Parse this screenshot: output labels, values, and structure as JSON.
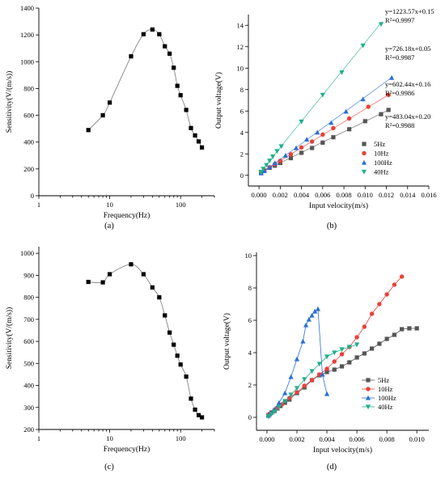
{
  "chart_data": [
    {
      "panel": "(a)",
      "type": "line",
      "xscale": "log",
      "xlabel": "Frequency(Hz)",
      "ylabel": "Sensitivity(V/(m/s))",
      "xlim": [
        1,
        300
      ],
      "ylim": [
        0,
        1400
      ],
      "xticks": [
        1,
        10,
        100
      ],
      "xtick_labels": [
        "1",
        "10",
        "100"
      ],
      "yticks": [
        0,
        200,
        400,
        600,
        800,
        1000,
        1200,
        1400
      ],
      "ytick_labels": [
        "0",
        "200",
        "400",
        "600",
        "800",
        "1000",
        "1200",
        "1400"
      ],
      "marker": "square",
      "series": [
        {
          "x": [
            5,
            8,
            10,
            20,
            30,
            40,
            50,
            60,
            70,
            80,
            90,
            100,
            120,
            140,
            160,
            180,
            200
          ],
          "y": [
            490,
            600,
            695,
            1040,
            1205,
            1240,
            1205,
            1115,
            1060,
            955,
            820,
            750,
            640,
            505,
            450,
            405,
            360
          ]
        }
      ]
    },
    {
      "panel": "(b)",
      "type": "scatter",
      "xlabel": "Input velocity(m/s)",
      "ylabel": "Output voltage(V)",
      "xlim": [
        -0.001,
        0.016
      ],
      "ylim": [
        -1,
        15
      ],
      "xticks": [
        0,
        0.002,
        0.004,
        0.006,
        0.008,
        0.01,
        0.012,
        0.014,
        0.016
      ],
      "xtick_labels": [
        "0.000",
        "0.002",
        "0.004",
        "0.006",
        "0.008",
        "0.010",
        "0.012",
        "0.014",
        "0.016"
      ],
      "yticks": [
        0,
        2,
        4,
        6,
        8,
        10,
        12,
        14
      ],
      "ytick_labels": [
        "0",
        "2",
        "4",
        "6",
        "8",
        "10",
        "12",
        "14"
      ],
      "legend": "bottom-right",
      "annotations": [
        {
          "eq": "y=1223.57x+0.15",
          "r2": "R²=0.9997",
          "series": "40Hz"
        },
        {
          "eq": "y=726.18x+0.05",
          "r2": "R²=0.9987",
          "series": "100Hz"
        },
        {
          "eq": "y=602.44x+0.16",
          "r2": "R²=0.9986",
          "series": "10Hz"
        },
        {
          "eq": "y=483.04x+0.20",
          "r2": "R²=0.9988",
          "series": "5Hz"
        }
      ],
      "series": [
        {
          "name": "5Hz",
          "color": "#555555",
          "marker": "square",
          "slope": 483.04,
          "intercept": 0.2,
          "x": [
            0.0002,
            0.0005,
            0.001,
            0.0015,
            0.002,
            0.003,
            0.004,
            0.005,
            0.006,
            0.007,
            0.0085,
            0.01,
            0.0115,
            0.0122
          ],
          "y": [
            0.3,
            0.45,
            0.7,
            0.9,
            1.15,
            1.6,
            2.1,
            2.55,
            3.05,
            3.55,
            4.3,
            5.05,
            5.7,
            6.1
          ]
        },
        {
          "name": "10Hz",
          "color": "#e8413c",
          "marker": "circle",
          "slope": 602.44,
          "intercept": 0.16,
          "x": [
            0.0002,
            0.0005,
            0.001,
            0.0015,
            0.002,
            0.003,
            0.004,
            0.005,
            0.006,
            0.007,
            0.0085,
            0.0103,
            0.0122
          ],
          "y": [
            0.3,
            0.45,
            0.75,
            1.05,
            1.35,
            1.95,
            2.6,
            3.15,
            3.8,
            4.4,
            5.3,
            6.4,
            7.5
          ]
        },
        {
          "name": "100Hz",
          "color": "#2a6fd6",
          "marker": "triangle-up",
          "slope": 726.18,
          "intercept": 0.05,
          "x": [
            0.0002,
            0.0005,
            0.001,
            0.0015,
            0.0025,
            0.0035,
            0.0045,
            0.0055,
            0.0068,
            0.0082,
            0.0098,
            0.0125
          ],
          "y": [
            0.2,
            0.4,
            0.75,
            1.15,
            1.85,
            2.55,
            3.35,
            4.0,
            4.9,
            5.95,
            7.1,
            9.1
          ]
        },
        {
          "name": "40Hz",
          "color": "#1fb08c",
          "marker": "triangle-down",
          "slope": 1223.57,
          "intercept": 0.15,
          "x": [
            0.0002,
            0.0004,
            0.0007,
            0.001,
            0.0013,
            0.0017,
            0.0021,
            0.004,
            0.006,
            0.0078,
            0.0098,
            0.0115
          ],
          "y": [
            0.3,
            0.6,
            0.95,
            1.35,
            1.75,
            2.25,
            2.7,
            5.0,
            7.5,
            9.6,
            12.1,
            14.1
          ]
        }
      ]
    },
    {
      "panel": "(c)",
      "type": "line",
      "xscale": "log",
      "xlabel": "Frequency(Hz)",
      "ylabel": "Sensitivity(V/(m/s))",
      "xlim": [
        1,
        300
      ],
      "ylim": [
        200,
        1030
      ],
      "xticks": [
        1,
        10,
        100
      ],
      "xtick_labels": [
        "1",
        "10",
        "100"
      ],
      "yticks": [
        200,
        300,
        400,
        500,
        600,
        700,
        800,
        900,
        1000
      ],
      "ytick_labels": [
        "200",
        "300",
        "400",
        "500",
        "600",
        "700",
        "800",
        "900",
        "1000"
      ],
      "marker": "square",
      "series": [
        {
          "x": [
            5,
            8,
            10,
            20,
            30,
            40,
            50,
            60,
            70,
            80,
            90,
            100,
            120,
            140,
            160,
            180,
            200
          ],
          "y": [
            870,
            868,
            905,
            950,
            905,
            845,
            800,
            718,
            640,
            585,
            535,
            495,
            440,
            340,
            290,
            265,
            255
          ]
        }
      ]
    },
    {
      "panel": "(d)",
      "type": "line",
      "xlabel": "Input velocity(m/s)",
      "ylabel": "Output voltage(V)",
      "xlim": [
        -0.0007,
        0.0108
      ],
      "ylim": [
        -0.8,
        10.2
      ],
      "xticks": [
        0,
        0.002,
        0.004,
        0.006,
        0.008,
        0.01
      ],
      "xtick_labels": [
        "0.000",
        "0.002",
        "0.004",
        "0.006",
        "0.008",
        "0.010"
      ],
      "yticks": [
        0,
        2,
        4,
        6,
        8,
        10
      ],
      "ytick_labels": [
        "0",
        "2",
        "4",
        "6",
        "8",
        "10"
      ],
      "legend": "bottom-right",
      "series": [
        {
          "name": "5Hz",
          "color": "#555555",
          "marker": "square",
          "x": [
            0.0001,
            0.0002,
            0.0003,
            0.0005,
            0.0007,
            0.0009,
            0.0012,
            0.0015,
            0.002,
            0.0025,
            0.003,
            0.0035,
            0.004,
            0.0045,
            0.005,
            0.0055,
            0.006,
            0.0065,
            0.007,
            0.0075,
            0.008,
            0.0085,
            0.009,
            0.0095,
            0.01
          ],
          "y": [
            0.15,
            0.2,
            0.3,
            0.4,
            0.55,
            0.7,
            0.9,
            1.1,
            1.5,
            1.85,
            2.3,
            2.6,
            2.8,
            2.95,
            3.15,
            3.4,
            3.7,
            3.95,
            4.25,
            4.55,
            4.85,
            5.1,
            5.45,
            5.5,
            5.5
          ]
        },
        {
          "name": "10Hz",
          "color": "#e8413c",
          "marker": "circle",
          "x": [
            0.0001,
            0.0003,
            0.0005,
            0.0007,
            0.001,
            0.0015,
            0.002,
            0.0025,
            0.003,
            0.0035,
            0.004,
            0.0045,
            0.005,
            0.0055,
            0.006,
            0.0065,
            0.007,
            0.0075,
            0.008,
            0.0085,
            0.009
          ],
          "y": [
            0.15,
            0.3,
            0.45,
            0.6,
            0.8,
            1.2,
            1.55,
            1.95,
            2.3,
            2.65,
            3.0,
            3.45,
            3.9,
            4.35,
            4.95,
            5.6,
            6.4,
            7.0,
            7.6,
            8.2,
            8.7
          ]
        },
        {
          "name": "100Hz",
          "color": "#2a6fd6",
          "marker": "triangle-up",
          "x": [
            0.0001,
            0.0003,
            0.0005,
            0.0008,
            0.0012,
            0.0016,
            0.002,
            0.0024,
            0.0026,
            0.0028,
            0.003,
            0.0032,
            0.0034,
            0.0037,
            0.004
          ],
          "y": [
            0.1,
            0.3,
            0.5,
            0.9,
            1.5,
            2.5,
            3.6,
            4.7,
            5.7,
            6.05,
            6.3,
            6.55,
            6.7,
            2.65,
            1.45
          ]
        },
        {
          "name": "40Hz",
          "color": "#1fb08c",
          "marker": "triangle-down",
          "x": [
            0.0001,
            0.0003,
            0.0005,
            0.0008,
            0.0012,
            0.0016,
            0.002,
            0.0025,
            0.003,
            0.0035,
            0.004,
            0.0045,
            0.005,
            0.0055,
            0.006
          ],
          "y": [
            0.05,
            0.2,
            0.35,
            0.65,
            1.0,
            1.4,
            1.8,
            2.35,
            2.85,
            3.3,
            3.75,
            4.0,
            4.2,
            4.35,
            4.5
          ]
        }
      ]
    }
  ]
}
